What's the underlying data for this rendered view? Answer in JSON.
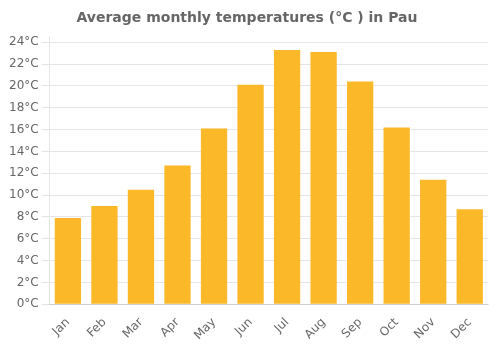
{
  "chart_data": {
    "type": "bar",
    "title": "Average monthly temperatures (°C ) in Pau",
    "categories": [
      "Jan",
      "Feb",
      "Mar",
      "Apr",
      "May",
      "Jun",
      "Jul",
      "Aug",
      "Sep",
      "Oct",
      "Nov",
      "Dec"
    ],
    "values": [
      7.9,
      9.0,
      10.5,
      12.7,
      16.1,
      20.1,
      23.3,
      23.1,
      20.4,
      16.2,
      11.4,
      8.7
    ],
    "color": "#FBB829",
    "ylim": [
      0,
      24.5
    ],
    "yticks": [
      {
        "value": 0,
        "label": "0°C"
      },
      {
        "value": 2,
        "label": "2°C"
      },
      {
        "value": 4,
        "label": "4°C"
      },
      {
        "value": 6,
        "label": "6°C"
      },
      {
        "value": 8,
        "label": "8°C"
      },
      {
        "value": 10,
        "label": "10°C"
      },
      {
        "value": 12,
        "label": "12°C"
      },
      {
        "value": 14,
        "label": "14°C"
      },
      {
        "value": 16,
        "label": "16°C"
      },
      {
        "value": 18,
        "label": "18°C"
      },
      {
        "value": 20,
        "label": "20°C"
      },
      {
        "value": 22,
        "label": "22°C"
      },
      {
        "value": 24,
        "label": "24°C"
      }
    ],
    "grid": true
  }
}
